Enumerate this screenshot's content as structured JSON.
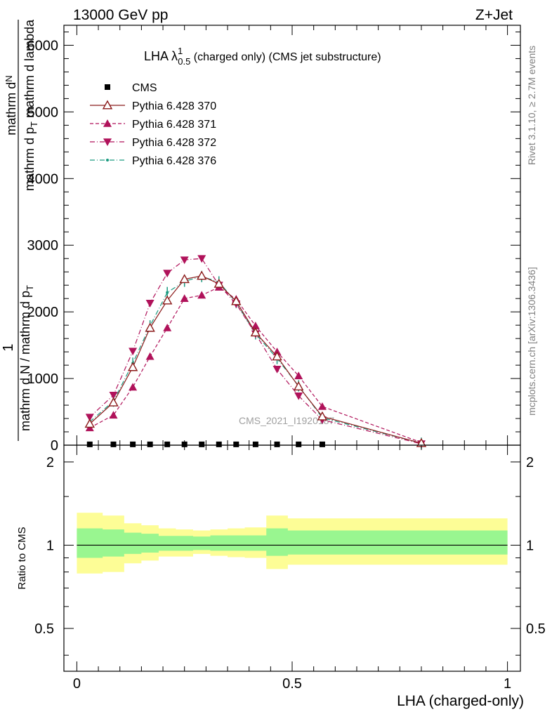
{
  "header": {
    "left": "13000 GeV pp",
    "right": "Z+Jet"
  },
  "plot_title": {
    "main": "LHA λ",
    "sup": "1",
    "sub": "0.5",
    "rest": " (charged only) (CMS jet substructure)"
  },
  "side_labels": {
    "rivet": "Rivet 3.1.10, ≥ 2.7M events",
    "mcplots": "mcplots.cern.ch [arXiv:1306.3436]"
  },
  "watermark": "CMS_2021_I1920187",
  "y_label": {
    "numerator_top": "mathrm d",
    "N": "N",
    "denom_top": "mathrm d p",
    "denom_sub": "T",
    "denom_rest": " mathrm d lambda",
    "one": "1",
    "outer_denom": "mathrm d N / mathrm d p",
    "outer_sub": "T"
  },
  "ratio_ylabel": "Ratio to CMS",
  "xlabel": "LHA (charged-only)",
  "legend": [
    {
      "label": "CMS",
      "color": "#000000",
      "marker": "square",
      "line": "none"
    },
    {
      "label": "Pythia 6.428 370",
      "color": "#8b1a1a",
      "marker": "triangle-up-open",
      "line": "solid"
    },
    {
      "label": "Pythia 6.428 371",
      "color": "#b0125a",
      "marker": "triangle-up",
      "line": "dashed"
    },
    {
      "label": "Pythia 6.428 372",
      "color": "#b0125a",
      "marker": "triangle-down",
      "line": "dashdot"
    },
    {
      "label": "Pythia 6.428 376",
      "color": "#1a9a80",
      "marker": "dot",
      "line": "dashdot"
    }
  ],
  "chart_data": [
    {
      "type": "line",
      "panel": "main",
      "xlim": [
        -0.03,
        1.03
      ],
      "ylim": [
        0,
        6300
      ],
      "yticks": [
        0,
        1000,
        2000,
        3000,
        4000,
        5000,
        6000
      ],
      "ytick_labels": [
        "0",
        "1000",
        "2000",
        "3000",
        "4000",
        "5000",
        "6000"
      ],
      "series": [
        {
          "name": "CMS",
          "x": [
            0.03,
            0.085,
            0.13,
            0.17,
            0.21,
            0.25,
            0.29,
            0.33,
            0.37,
            0.415,
            0.465,
            0.515,
            0.57
          ],
          "y": [
            12,
            12,
            12,
            12,
            12,
            12,
            12,
            12,
            12,
            12,
            12,
            12,
            12
          ],
          "color": "#000000"
        },
        {
          "name": "Pythia 6.428 370",
          "x": [
            0.03,
            0.085,
            0.13,
            0.17,
            0.21,
            0.25,
            0.29,
            0.33,
            0.37,
            0.415,
            0.465,
            0.515,
            0.57,
            0.8
          ],
          "y": [
            320,
            640,
            1170,
            1760,
            2170,
            2490,
            2540,
            2420,
            2160,
            1690,
            1330,
            880,
            430,
            30
          ],
          "color": "#8b1a1a"
        },
        {
          "name": "Pythia 6.428 371",
          "x": [
            0.03,
            0.085,
            0.13,
            0.17,
            0.21,
            0.25,
            0.29,
            0.33,
            0.37,
            0.415,
            0.465,
            0.515,
            0.57,
            0.8
          ],
          "y": [
            260,
            450,
            870,
            1330,
            1760,
            2200,
            2250,
            2370,
            2190,
            1790,
            1400,
            1040,
            580,
            40
          ],
          "color": "#b0125a"
        },
        {
          "name": "Pythia 6.428 372",
          "x": [
            0.03,
            0.085,
            0.13,
            0.17,
            0.21,
            0.25,
            0.29,
            0.33,
            0.37,
            0.415,
            0.465,
            0.515,
            0.57,
            0.8
          ],
          "y": [
            420,
            750,
            1410,
            2130,
            2580,
            2780,
            2800,
            2400,
            2120,
            1670,
            1140,
            740,
            380,
            20
          ],
          "color": "#b0125a"
        },
        {
          "name": "Pythia 6.428 376",
          "x": [
            0.03,
            0.085,
            0.13,
            0.17,
            0.21,
            0.25,
            0.29,
            0.33,
            0.37,
            0.415,
            0.465,
            0.515,
            0.57,
            0.8
          ],
          "y": [
            350,
            660,
            1230,
            1790,
            2290,
            2460,
            2530,
            2450,
            2140,
            1670,
            1300,
            890,
            410,
            30
          ],
          "color": "#1a9a80"
        }
      ]
    },
    {
      "type": "area",
      "panel": "ratio",
      "xlim": [
        -0.03,
        1.03
      ],
      "ylim": [
        0.35,
        2.3
      ],
      "yticks": [
        0.5,
        1,
        2
      ],
      "ytick_labels": [
        "0.5",
        "1",
        "2"
      ],
      "xticks": [
        0,
        0.5,
        1
      ],
      "xtick_labels": [
        "0",
        "0.5",
        "1"
      ],
      "bin_edges": [
        0,
        0.06,
        0.11,
        0.15,
        0.19,
        0.23,
        0.27,
        0.31,
        0.35,
        0.39,
        0.44,
        0.49,
        0.54,
        1.0
      ],
      "stat_band_lo": [
        0.9,
        0.91,
        0.93,
        0.94,
        0.955,
        0.955,
        0.96,
        0.955,
        0.955,
        0.955,
        0.915,
        0.925,
        0.925
      ],
      "stat_band_hi": [
        1.15,
        1.14,
        1.11,
        1.1,
        1.08,
        1.08,
        1.075,
        1.085,
        1.085,
        1.085,
        1.15,
        1.13,
        1.13
      ],
      "total_band_lo": [
        0.79,
        0.8,
        0.86,
        0.88,
        0.91,
        0.91,
        0.93,
        0.915,
        0.905,
        0.9,
        0.82,
        0.85,
        0.85
      ],
      "total_band_hi": [
        1.31,
        1.28,
        1.2,
        1.18,
        1.15,
        1.14,
        1.13,
        1.14,
        1.15,
        1.16,
        1.28,
        1.25,
        1.25
      ],
      "reference": 1,
      "band_colors": {
        "stat": "#99f690",
        "total": "#fdfd96"
      }
    }
  ]
}
